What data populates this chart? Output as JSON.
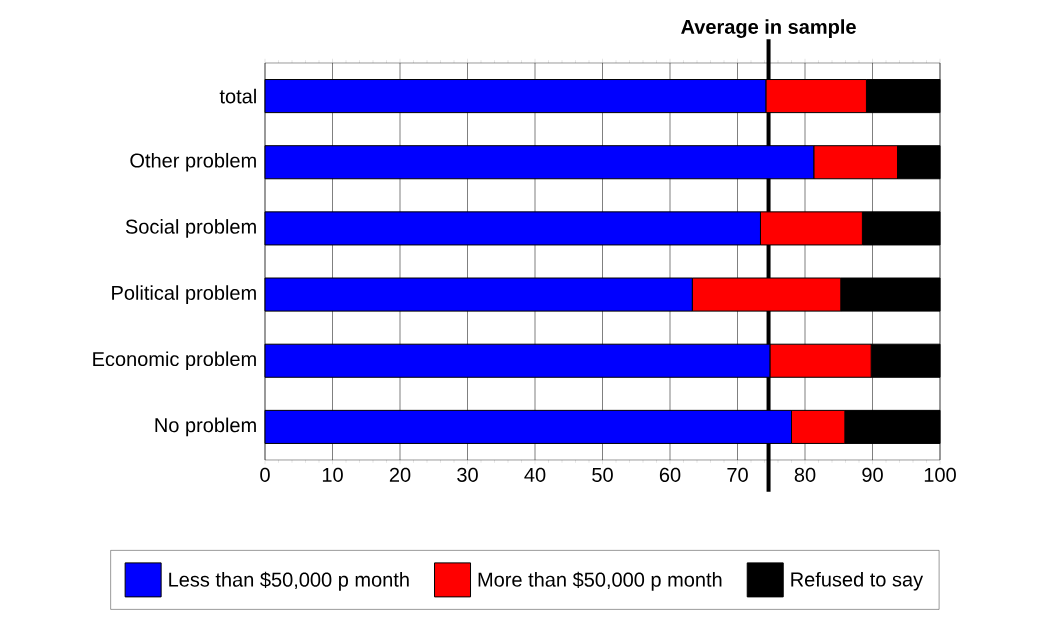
{
  "chart_data": {
    "type": "bar",
    "orientation": "horizontal",
    "stacked": true,
    "categories": [
      "total",
      "Other problem",
      "Social problem",
      "Political problem",
      "Economic problem",
      "No problem"
    ],
    "series": [
      {
        "name": "Less than $50,000 p month",
        "color": "#0000ff",
        "values": [
          74.2,
          81.3,
          73.4,
          63.3,
          74.8,
          78.0
        ]
      },
      {
        "name": "More than $50,000 p month",
        "color": "#ff0000",
        "values": [
          14.9,
          12.4,
          15.1,
          22.0,
          15.0,
          7.9
        ]
      },
      {
        "name": "Refused to say",
        "color": "#000000",
        "values": [
          10.9,
          6.3,
          11.5,
          14.7,
          10.2,
          14.1
        ]
      }
    ],
    "xlim": [
      0,
      100
    ],
    "xticks": [
      0,
      10,
      20,
      30,
      40,
      50,
      60,
      70,
      80,
      90,
      100
    ],
    "ref_lines": [
      {
        "axis": "x",
        "value": 74.6,
        "label": "Average in sample",
        "color": "#000000"
      }
    ],
    "grid": "x",
    "legend": "bottom"
  }
}
